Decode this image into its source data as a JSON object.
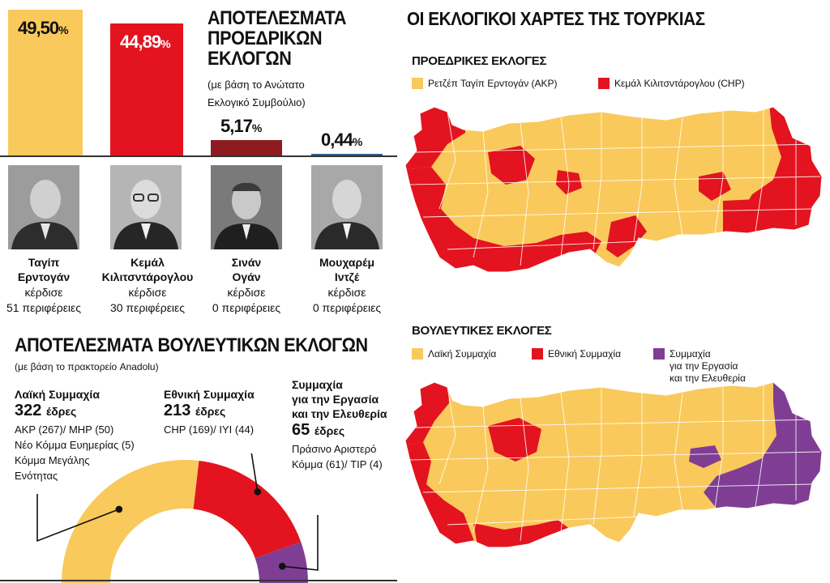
{
  "presidential": {
    "title_lines": [
      "ΑΠΟΤΕΛΕΣΜΑΤΑ",
      "ΠΡΟΕΔΡΙΚΩΝ",
      "ΕΚΛΟΓΩΝ"
    ],
    "source_lines": [
      "(με βάση το Ανώτατο",
      "Εκλογικό Συμβούλιο)"
    ]
  },
  "parliamentary": {
    "title": "ΑΠΟΤΕΛΕΣΜΑΤΑ ΒΟΥΛΕΥΤΙΚΩΝ ΕΚΛΟΓΩΝ",
    "source": "(με βάση το πρακτορείο Anadolu)",
    "parties": [
      {
        "name_lines": [
          "Λαϊκή Συμμαχία"
        ],
        "seats": "322",
        "seats_word": "έδρες",
        "sub_lines": [
          "AKP (267)/ MHP (50)",
          "Νέο Κόμμα Ευημερίας (5)",
          "Κόμμα Μεγάλης",
          "Ενότητας"
        ]
      },
      {
        "name_lines": [
          "Εθνική Συμμαχία"
        ],
        "seats": "213",
        "seats_word": "έδρες",
        "sub_lines": [
          "CHP (169)/ IYI (44)"
        ]
      },
      {
        "name_lines": [
          "Συμμαχία",
          "για την Εργασία",
          "και την Ελευθερία"
        ],
        "seats": "65",
        "seats_word": "έδρες",
        "sub_lines": [
          "Πράσινο Αριστερό",
          "Κόμμα (61)/ TIP (4)"
        ]
      }
    ]
  },
  "maps": {
    "title": "ΟΙ ΕΚΛΟΓΙΚΟΙ ΧΑΡΤΕΣ ΤΗΣ ΤΟΥΡΚΙΑΣ",
    "presidential": {
      "title": "ΠΡΟΕΔΡΙΚΕΣ ΕΚΛΟΓΕΣ",
      "legend": [
        {
          "label": "Ρετζέπ Ταγίπ Ερντογάν (AKP)",
          "color": "#f9c95c"
        },
        {
          "label": "Κεμάλ Κιλιτσντάρογλου (CHP)",
          "color": "#e3141f"
        }
      ]
    },
    "parliamentary": {
      "title": "ΒΟΥΛΕΥΤΙΚΕΣ ΕΚΛΟΓΕΣ",
      "legend": [
        {
          "label_lines": [
            "Λαϊκή Συμμαχία"
          ],
          "color": "#f9c95c"
        },
        {
          "label_lines": [
            "Εθνική Συμμαχία"
          ],
          "color": "#e3141f"
        },
        {
          "label_lines": [
            "Συμμαχία",
            "για την Εργασία",
            "και την Ελευθερία"
          ],
          "color": "#7f3e93"
        }
      ]
    }
  },
  "chart_data": [
    {
      "type": "bar",
      "title": "ΑΠΟΤΕΛΕΣΜΑΤΑ ΠΡΟΕΔΡΙΚΩΝ ΕΚΛΟΓΩΝ",
      "unit": "%",
      "categories": [
        "Ταγίπ Ερντογάν",
        "Κεμάλ Κιλιτσντάρογλου",
        "Σινάν Ογάν",
        "Μουχαρέμ Ιντζέ"
      ],
      "values": [
        49.5,
        44.89,
        5.17,
        0.44
      ],
      "value_labels": [
        "49,50",
        "44,89",
        "5,17",
        "0,44"
      ],
      "colors": [
        "#f9c95c",
        "#e3141f",
        "#8e1b1f",
        "#2f5d8a"
      ],
      "candidates": [
        {
          "name_lines": [
            "Ταγίπ",
            "Ερντογάν"
          ],
          "result_lines": [
            "κέρδισε",
            "51 περιφέρειες"
          ]
        },
        {
          "name_lines": [
            "Κεμάλ",
            "Κιλιτσντάρογλου"
          ],
          "result_lines": [
            "κέρδισε",
            "30 περιφέρειες"
          ]
        },
        {
          "name_lines": [
            "Σινάν",
            "Ογάν"
          ],
          "result_lines": [
            "κέρδισε",
            "0 περιφέρειες"
          ]
        },
        {
          "name_lines": [
            "Μουχαρέμ",
            "Ιντζέ"
          ],
          "result_lines": [
            "κέρδισε",
            "0 περιφέρειες"
          ]
        }
      ]
    },
    {
      "type": "pie",
      "title": "ΑΠΟΤΕΛΕΣΜΑΤΑ ΒΟΥΛΕΥΤΙΚΩΝ ΕΚΛΟΓΩΝ",
      "categories": [
        "Λαϊκή Συμμαχία",
        "Εθνική Συμμαχία",
        "Συμμαχία για την Εργασία και την Ελευθερία"
      ],
      "values": [
        322,
        213,
        65
      ],
      "colors": [
        "#f9c95c",
        "#e3141f",
        "#7f3e93"
      ]
    }
  ]
}
